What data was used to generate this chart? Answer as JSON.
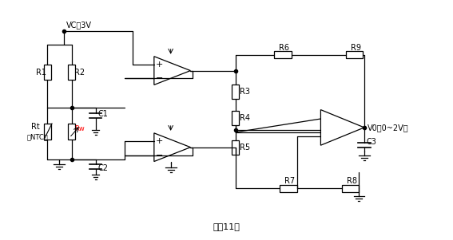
{
  "title": "图（11）",
  "bg_color": "#ffffff",
  "line_color": "#000000",
  "label_vc": "VC：3V",
  "label_r1": "R1",
  "label_r2": "R2",
  "label_r3": "R3",
  "label_r4": "R4",
  "label_r5": "R5",
  "label_r6": "R6",
  "label_r7": "R7",
  "label_r8": "R8",
  "label_r9": "R9",
  "label_rt": "Rt",
  "label_ntc": "（NTC）",
  "label_rw": "Rw",
  "label_c1": "C1",
  "label_c2": "C2",
  "label_c3": "C3",
  "label_vo": "V0（0~2V）",
  "fig_width": 5.67,
  "fig_height": 3.01,
  "dpi": 100
}
